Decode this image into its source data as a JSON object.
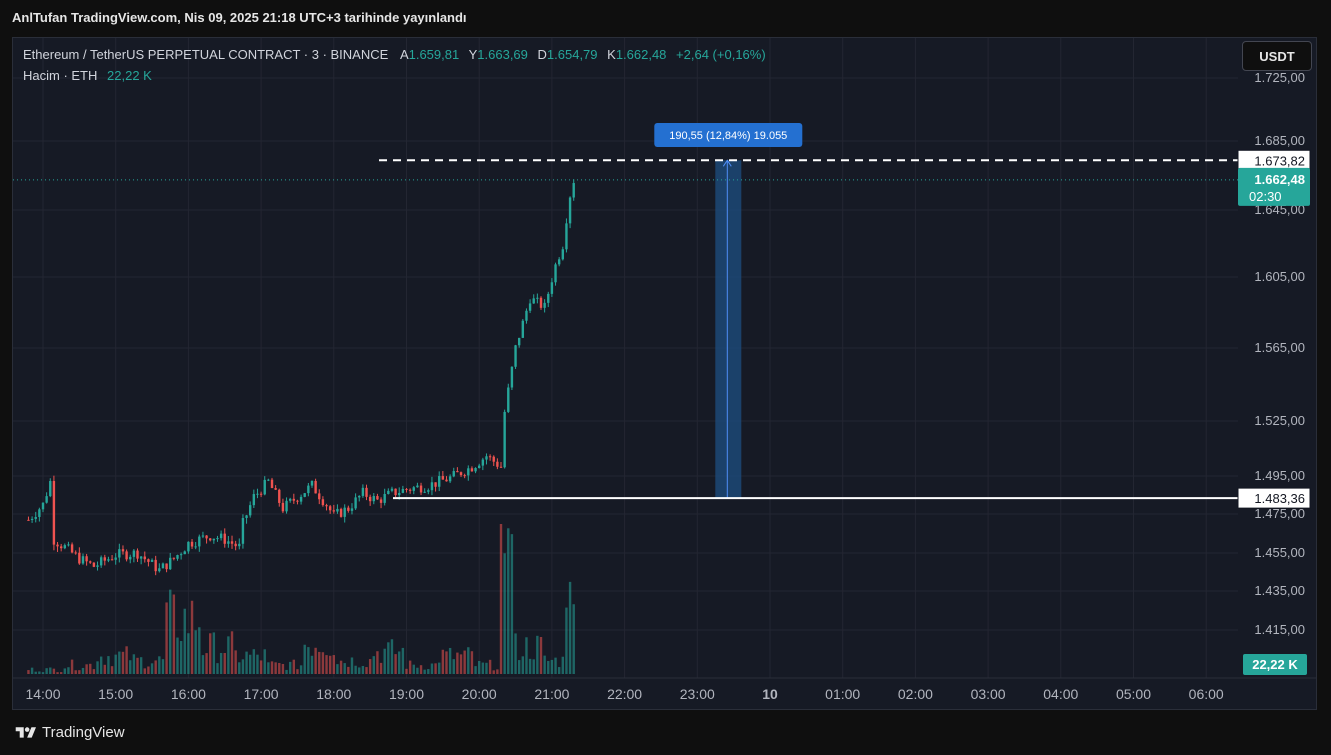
{
  "header": {
    "publish_text": "AnlTufan TradingView.com, Nis 09, 2025 21:18 UTC+3 tarihinde yayınlandı"
  },
  "legend": {
    "symbol": "Ethereum / TetherUS PERPETUAL CONTRACT · 3 · BINANCE",
    "open_label": "A",
    "open_value": "1.659,81",
    "high_label": "Y",
    "high_value": "1.663,69",
    "low_label": "D",
    "low_value": "1.654,79",
    "close_label": "K",
    "close_value": "1.662,48",
    "change_value": "+2,64 (+0,16%)",
    "volume_label": "Hacim · ETH",
    "volume_value": "22,22 K"
  },
  "toolbar": {
    "currency_label": "USDT"
  },
  "footer": {
    "brand": "TradingView"
  },
  "colors": {
    "up": "#26a69a",
    "down": "#ef5350",
    "grid": "#232632",
    "measure_fill": "#1e4f82",
    "measure_line": "#2962ff",
    "label_blue": "#2470d1"
  },
  "chart_data": {
    "type": "candlestick",
    "title": "Ethereum / TetherUS PERPETUAL CONTRACT · 3 · BINANCE",
    "y_ticks": [
      "1.725,00",
      "1.685,00",
      "1.645,00",
      "1.605,00",
      "1.565,00",
      "1.525,00",
      "1.495,00",
      "1.475,00",
      "1.455,00",
      "1.435,00",
      "1.415,00"
    ],
    "y_tick_values": [
      1725,
      1685,
      1645,
      1605,
      1565,
      1525,
      1495,
      1475,
      1455,
      1435,
      1415
    ],
    "x_ticks": [
      "14:00",
      "15:00",
      "16:00",
      "17:00",
      "18:00",
      "19:00",
      "20:00",
      "21:00",
      "22:00",
      "23:00",
      "10",
      "01:00",
      "02:00",
      "03:00",
      "04:00",
      "05:00",
      "06:00"
    ],
    "price_keyframes": [
      [
        13.8,
        1472
      ],
      [
        14.0,
        1480
      ],
      [
        14.1,
        1492
      ],
      [
        14.15,
        1462
      ],
      [
        14.3,
        1458
      ],
      [
        14.5,
        1452
      ],
      [
        14.7,
        1448
      ],
      [
        15.0,
        1454
      ],
      [
        15.3,
        1455
      ],
      [
        15.6,
        1446
      ],
      [
        15.8,
        1452
      ],
      [
        16.0,
        1460
      ],
      [
        16.3,
        1464
      ],
      [
        16.5,
        1462
      ],
      [
        16.7,
        1458
      ],
      [
        16.75,
        1470
      ],
      [
        16.9,
        1484
      ],
      [
        17.1,
        1492
      ],
      [
        17.3,
        1478
      ],
      [
        17.5,
        1484
      ],
      [
        17.7,
        1490
      ],
      [
        17.9,
        1480
      ],
      [
        18.0,
        1474
      ],
      [
        18.2,
        1478
      ],
      [
        18.4,
        1486
      ],
      [
        18.6,
        1482
      ],
      [
        18.8,
        1486
      ],
      [
        19.0,
        1488
      ],
      [
        19.3,
        1490
      ],
      [
        19.6,
        1494
      ],
      [
        19.9,
        1500
      ],
      [
        20.1,
        1506
      ],
      [
        20.3,
        1500
      ],
      [
        20.35,
        1530
      ],
      [
        20.5,
        1565
      ],
      [
        20.7,
        1593
      ],
      [
        20.9,
        1588
      ],
      [
        21.05,
        1612
      ],
      [
        21.15,
        1624
      ],
      [
        21.2,
        1640
      ],
      [
        21.28,
        1662
      ],
      [
        21.33,
        1662.48
      ]
    ],
    "volume_levels": [
      0.05,
      0.1,
      0.2,
      0.15,
      0.6,
      0.3,
      0.2,
      0.1,
      0.35,
      0.15,
      0.25,
      0.1,
      0.2,
      0.1,
      0.3,
      0.15
    ],
    "last_price": "1.662,48",
    "last_price_value": 1662.48,
    "countdown": "02:30",
    "volume_badge": "22,22 K",
    "high_line_price": "1.673,82",
    "high_line_value": 1673.82,
    "low_line_price": "1.483,36",
    "low_line_value": 1483.36,
    "measure_label": "190,55 (12,84%) 19.055",
    "measure_x_hour": 23.0,
    "grid": true
  }
}
